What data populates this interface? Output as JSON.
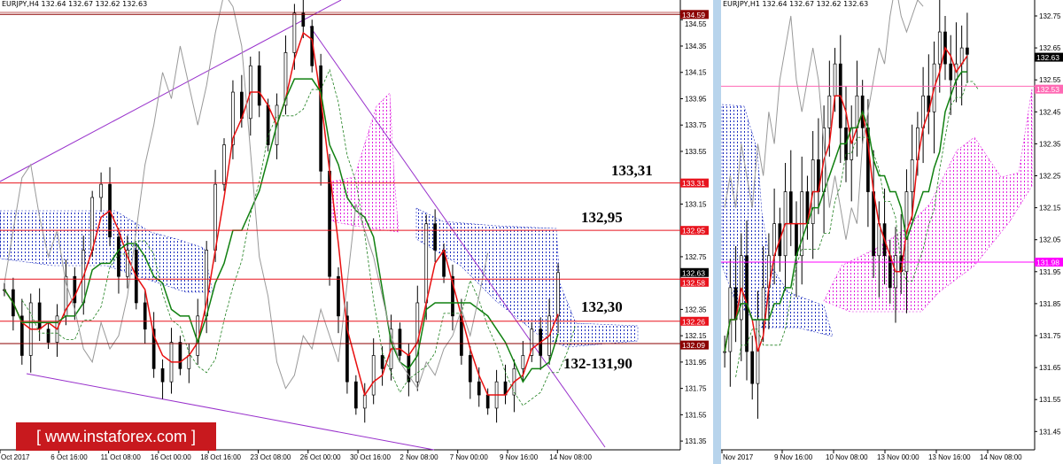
{
  "watermark": "[  www.instaforex.com  ]",
  "chart_data": [
    {
      "type": "candlestick",
      "header": "EURJPY,H4  132.64 132.67 132.62 132.63",
      "symbol": "EURJPY",
      "timeframe": "H4",
      "ohlc": {
        "open": 132.64,
        "high": 132.67,
        "low": 132.62,
        "close": 132.63
      },
      "ylim": [
        131.3,
        134.6
      ],
      "y_ticks": [
        "134.55",
        "134.35",
        "134.15",
        "133.95",
        "133.75",
        "133.55",
        "133.15",
        "132.75",
        "132.35",
        "132.15",
        "131.95",
        "131.75",
        "131.55",
        "131.35"
      ],
      "x_ticks": [
        "Oct 2017",
        "6 Oct 16:00",
        "11 Oct 08:00",
        "16 Oct 00:00",
        "18 Oct 16:00",
        "23 Oct 08:00",
        "26 Oct 00:00",
        "30 Oct 16:00",
        "2 Nov 08:00",
        "7 Nov 00:00",
        "9 Nov 16:00",
        "14 Nov 08:00"
      ],
      "closes": [
        132.5,
        132.3,
        132.0,
        132.4,
        132.2,
        132.1,
        132.3,
        132.6,
        132.4,
        132.8,
        133.2,
        133.3,
        132.9,
        132.6,
        132.8,
        132.4,
        132.2,
        131.9,
        131.8,
        132.1,
        131.9,
        132.0,
        132.3,
        132.8,
        133.3,
        133.6,
        134.0,
        133.8,
        134.2,
        133.9,
        133.6,
        133.9,
        134.3,
        134.6,
        134.5,
        134.2,
        133.4,
        132.6,
        132.3,
        131.8,
        131.6,
        131.7,
        132.0,
        131.9,
        132.2,
        132.0,
        131.8,
        132.4,
        133.0,
        132.8,
        132.6,
        132.3,
        132.0,
        131.8,
        131.7,
        131.6,
        131.8,
        131.7,
        131.9,
        132.0,
        132.2,
        132.0,
        132.3,
        132.63
      ],
      "levels": [
        {
          "price": 134.59,
          "label": "134.59",
          "color": "#8b0000"
        },
        {
          "price": 133.31,
          "label": "133.31",
          "color": "#e8141e"
        },
        {
          "price": 132.95,
          "label": "132.95",
          "color": "#e8141e"
        },
        {
          "price": 132.63,
          "label": "132.63",
          "color": "#000000"
        },
        {
          "price": 132.58,
          "label": "132.58",
          "color": "#e8141e"
        },
        {
          "price": 132.26,
          "label": "132.26",
          "color": "#e8141e"
        },
        {
          "price": 132.09,
          "label": "132.09",
          "color": "#8b0000"
        }
      ],
      "annotations": [
        "133,31",
        "132,95",
        "132,30",
        "132-131,90"
      ]
    },
    {
      "type": "candlestick",
      "header": "EURJPY,H1  132.64 132.67 132.62 132.63",
      "symbol": "EURJPY",
      "timeframe": "H1",
      "ohlc": {
        "open": 132.64,
        "high": 132.67,
        "low": 132.62,
        "close": 132.63
      },
      "ylim": [
        131.4,
        132.8
      ],
      "y_ticks": [
        "132.75",
        "132.65",
        "132.55",
        "132.45",
        "132.35",
        "132.25",
        "132.15",
        "132.05",
        "131.95",
        "131.85",
        "131.75",
        "131.65",
        "131.55",
        "131.45"
      ],
      "x_ticks": [
        "Nov 2017",
        "9 Nov 16:00",
        "10 Nov 08:00",
        "13 Nov 00:00",
        "13 Nov 16:00",
        "14 Nov 08:00"
      ],
      "closes": [
        131.7,
        131.9,
        131.8,
        132.0,
        131.7,
        131.6,
        131.8,
        131.9,
        132.0,
        132.1,
        132.0,
        132.2,
        132.1,
        132.0,
        132.2,
        132.1,
        132.3,
        132.2,
        132.4,
        132.5,
        132.6,
        132.4,
        132.3,
        132.4,
        132.5,
        132.4,
        132.2,
        132.0,
        132.1,
        132.0,
        131.9,
        132.0,
        131.95,
        132.2,
        132.3,
        132.4,
        132.5,
        132.45,
        132.6,
        132.7,
        132.6,
        132.55,
        132.6,
        132.65,
        132.63
      ],
      "levels": [
        {
          "price": 132.63,
          "label": "132.63",
          "color": "#000000"
        },
        {
          "price": 132.53,
          "label": "132.53",
          "color": "#ff69b4"
        },
        {
          "price": 131.98,
          "label": "131.98",
          "color": "#ff00ff"
        }
      ]
    }
  ]
}
